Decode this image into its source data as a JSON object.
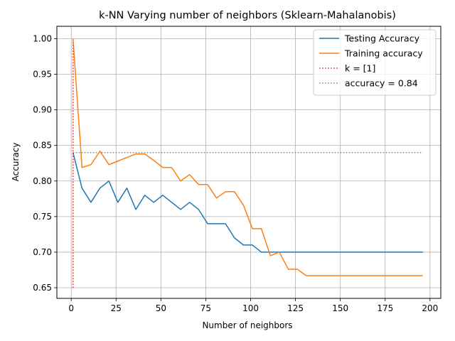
{
  "chart_data": {
    "type": "line",
    "title": "k-NN Varying number of neighbors (Sklearn-Mahalanobis)",
    "xlabel": "Number of neighbors",
    "ylabel": "Accuracy",
    "xlim": [
      -8,
      206
    ],
    "ylim": [
      0.635,
      1.0175
    ],
    "xticks": [
      0,
      25,
      50,
      75,
      100,
      125,
      150,
      175,
      200
    ],
    "yticks": [
      0.65,
      0.7,
      0.75,
      0.8,
      0.85,
      0.9,
      0.95,
      1.0
    ],
    "ytick_labels": [
      "0.65",
      "0.70",
      "0.75",
      "0.80",
      "0.85",
      "0.90",
      "0.95",
      "1.00"
    ],
    "grid": true,
    "legend_position": "top-right",
    "series": [
      {
        "name": "Testing Accuracy",
        "color": "#1f77b4",
        "style": "solid",
        "x": [
          1,
          6,
          11,
          16,
          21,
          26,
          31,
          36,
          41,
          46,
          51,
          56,
          61,
          66,
          71,
          76,
          81,
          86,
          91,
          96,
          101,
          106,
          111,
          116,
          121,
          126,
          131,
          136,
          141,
          146,
          151,
          156,
          161,
          166,
          171,
          176,
          181,
          186,
          191,
          196
        ],
        "y": [
          0.84,
          0.79,
          0.77,
          0.79,
          0.8,
          0.77,
          0.79,
          0.76,
          0.78,
          0.77,
          0.78,
          0.77,
          0.76,
          0.77,
          0.76,
          0.74,
          0.74,
          0.74,
          0.72,
          0.71,
          0.71,
          0.7,
          0.7,
          0.7,
          0.7,
          0.7,
          0.7,
          0.7,
          0.7,
          0.7,
          0.7,
          0.7,
          0.7,
          0.7,
          0.7,
          0.7,
          0.7,
          0.7,
          0.7,
          0.7
        ]
      },
      {
        "name": "Training accuracy",
        "color": "#ff7f0e",
        "style": "solid",
        "x": [
          1,
          6,
          11,
          16,
          21,
          26,
          31,
          36,
          41,
          46,
          51,
          56,
          61,
          66,
          71,
          76,
          81,
          86,
          91,
          96,
          101,
          106,
          111,
          116,
          121,
          126,
          131,
          136,
          141,
          146,
          151,
          156,
          161,
          166,
          171,
          176,
          181,
          186,
          191,
          196
        ],
        "y": [
          1.0,
          0.819,
          0.823,
          0.842,
          0.823,
          0.828,
          0.833,
          0.838,
          0.838,
          0.829,
          0.819,
          0.819,
          0.8,
          0.809,
          0.795,
          0.795,
          0.776,
          0.785,
          0.785,
          0.766,
          0.733,
          0.733,
          0.695,
          0.7,
          0.676,
          0.676,
          0.667,
          0.667,
          0.667,
          0.667,
          0.667,
          0.667,
          0.667,
          0.667,
          0.667,
          0.667,
          0.667,
          0.667,
          0.667,
          0.667
        ]
      },
      {
        "name": "k = [1]",
        "color": "#d62728",
        "style": "dotted",
        "x": [
          1,
          1
        ],
        "y": [
          0.65,
          1.0
        ]
      },
      {
        "name": "accuracy = 0.84",
        "color": "#808080",
        "style": "dotted",
        "x": [
          1,
          196
        ],
        "y": [
          0.84,
          0.84
        ]
      }
    ]
  }
}
